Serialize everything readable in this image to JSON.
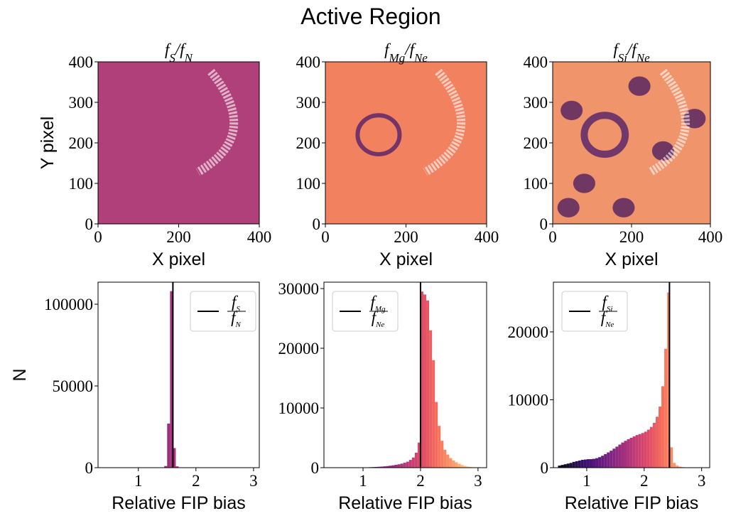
{
  "title": "Active Region",
  "chart_data": [
    {
      "type": "image",
      "title": [
        {
          "text": "f"
        },
        {
          "text": "S",
          "sub": true
        },
        {
          "text": "/"
        },
        {
          "text": "f"
        },
        {
          "text": "N",
          "sub": true
        }
      ],
      "xlabel": "X pixel",
      "ylabel": "Y pixel",
      "xlim": [
        0,
        400
      ],
      "ylim": [
        0,
        400
      ],
      "xticks": [
        0,
        200,
        400
      ],
      "yticks": [
        0,
        100,
        200,
        300,
        400
      ],
      "color": "#b0407a"
    },
    {
      "type": "image",
      "title": [
        {
          "text": "f"
        },
        {
          "text": "Mg",
          "sub": true
        },
        {
          "text": "/"
        },
        {
          "text": "f"
        },
        {
          "text": "Ne",
          "sub": true
        }
      ],
      "xlabel": "X pixel",
      "xlim": [
        0,
        400
      ],
      "ylim": [
        0,
        400
      ],
      "xticks": [
        0,
        200,
        400
      ],
      "yticks": [
        0,
        100,
        200,
        300,
        400
      ],
      "color": "#f2825f"
    },
    {
      "type": "image",
      "title": [
        {
          "text": "f"
        },
        {
          "text": "Si",
          "sub": true
        },
        {
          "text": "/"
        },
        {
          "text": "f"
        },
        {
          "text": "Ne",
          "sub": true
        }
      ],
      "xlabel": "X pixel",
      "xlim": [
        0,
        400
      ],
      "ylim": [
        0,
        400
      ],
      "xticks": [
        0,
        200,
        400
      ],
      "yticks": [
        0,
        100,
        200,
        300,
        400
      ],
      "color": "#f0946c"
    },
    {
      "type": "histogram",
      "xlabel": "Relative FIP bias",
      "ylabel": "N",
      "cmap": "magma",
      "bins": [
        0.5,
        0.55,
        0.6,
        0.65,
        0.7,
        0.75,
        0.8,
        0.85,
        0.9,
        0.95,
        1.0,
        1.05,
        1.1,
        1.15,
        1.2,
        1.25,
        1.3,
        1.35,
        1.4,
        1.45,
        1.5,
        1.55,
        1.6,
        1.65,
        1.7,
        1.75,
        1.8,
        1.85,
        1.9,
        1.95,
        2.0,
        2.05,
        2.1,
        2.15,
        2.2,
        2.25,
        2.3,
        2.35,
        2.4,
        2.45,
        2.5,
        2.55,
        2.6,
        2.65,
        2.7,
        2.75,
        2.8,
        2.85,
        2.9,
        2.95,
        3.0
      ],
      "counts": [
        0,
        0,
        0,
        0,
        0,
        0,
        0,
        0,
        0,
        0,
        0,
        0,
        0,
        0,
        0,
        0,
        0,
        0,
        0,
        1000,
        27000,
        108000,
        12000,
        800,
        0,
        0,
        0,
        0,
        0,
        0,
        0,
        0,
        0,
        0,
        0,
        0,
        0,
        0,
        0,
        0,
        0,
        0,
        0,
        0,
        0,
        0,
        0,
        0,
        0,
        0
      ],
      "xlim": [
        0.3,
        3.1
      ],
      "ylim": [
        0,
        113500
      ],
      "xticks": [
        1,
        2,
        3
      ],
      "yticks": [
        0,
        50000,
        100000
      ],
      "vline": 1.6,
      "vline_color": "#000000",
      "legend": {
        "loc": "upper right",
        "numerator": [
          {
            "text": "f"
          },
          {
            "text": "S",
            "sub": true
          }
        ],
        "denominator": [
          {
            "text": "f"
          },
          {
            "text": "N",
            "sub": true
          }
        ]
      }
    },
    {
      "type": "histogram",
      "xlabel": "Relative FIP bias",
      "cmap": "magma",
      "bins": [
        0.5,
        0.55,
        0.6,
        0.65,
        0.7,
        0.75,
        0.8,
        0.85,
        0.9,
        0.95,
        1.0,
        1.05,
        1.1,
        1.15,
        1.2,
        1.25,
        1.3,
        1.35,
        1.4,
        1.45,
        1.5,
        1.55,
        1.6,
        1.65,
        1.7,
        1.75,
        1.8,
        1.85,
        1.9,
        1.95,
        2.0,
        2.05,
        2.1,
        2.15,
        2.2,
        2.25,
        2.3,
        2.35,
        2.4,
        2.45,
        2.5,
        2.55,
        2.6,
        2.65,
        2.7,
        2.75,
        2.8,
        2.85,
        2.9,
        2.95,
        3.0
      ],
      "counts": [
        0,
        0,
        0,
        0,
        0,
        0,
        0,
        0,
        20,
        30,
        50,
        60,
        80,
        100,
        120,
        150,
        180,
        220,
        270,
        330,
        400,
        480,
        570,
        680,
        820,
        1000,
        1300,
        1700,
        2500,
        4200,
        29500,
        29000,
        28000,
        23000,
        18000,
        11000,
        7000,
        4500,
        3000,
        2200,
        1600,
        1200,
        900,
        650,
        450,
        300,
        200,
        130,
        80,
        40
      ],
      "xlim": [
        0.32,
        3.15
      ],
      "ylim": [
        0,
        31070
      ],
      "xticks": [
        1,
        2,
        3
      ],
      "yticks": [
        0,
        10000,
        20000,
        30000
      ],
      "vline": 2.0,
      "vline_color": "#000000",
      "legend": {
        "loc": "upper left",
        "numerator": [
          {
            "text": "f"
          },
          {
            "text": "Mg",
            "sub": true
          }
        ],
        "denominator": [
          {
            "text": "f"
          },
          {
            "text": "Ne",
            "sub": true
          }
        ]
      }
    },
    {
      "type": "histogram",
      "xlabel": "Relative FIP bias",
      "cmap": "magma",
      "bins": [
        0.5,
        0.55,
        0.6,
        0.65,
        0.7,
        0.75,
        0.8,
        0.85,
        0.9,
        0.95,
        1.0,
        1.05,
        1.1,
        1.15,
        1.2,
        1.25,
        1.3,
        1.35,
        1.4,
        1.45,
        1.5,
        1.55,
        1.6,
        1.65,
        1.7,
        1.75,
        1.8,
        1.85,
        1.9,
        1.95,
        2.0,
        2.05,
        2.1,
        2.15,
        2.2,
        2.25,
        2.3,
        2.35,
        2.4,
        2.45,
        2.5,
        2.55,
        2.6,
        2.65,
        2.7,
        2.75,
        2.8,
        2.85,
        2.9,
        2.95,
        3.0
      ],
      "counts": [
        300,
        400,
        500,
        600,
        700,
        850,
        950,
        1050,
        1150,
        1200,
        1250,
        1250,
        1300,
        1400,
        1550,
        1750,
        2000,
        2250,
        2500,
        2800,
        3100,
        3400,
        3700,
        3950,
        4200,
        4400,
        4600,
        4800,
        4950,
        5100,
        5300,
        5600,
        6000,
        6600,
        7500,
        9000,
        12000,
        17500,
        25800,
        3000,
        700,
        300,
        150,
        80,
        40,
        20,
        10,
        0,
        0,
        0
      ],
      "xlim": [
        0.42,
        3.14
      ],
      "ylim": [
        0,
        27320
      ],
      "xticks": [
        1,
        2,
        3
      ],
      "yticks": [
        0,
        10000,
        20000
      ],
      "vline": 2.44,
      "vline_color": "#000000",
      "legend": {
        "loc": "upper left",
        "numerator": [
          {
            "text": "f"
          },
          {
            "text": "Si",
            "sub": true
          }
        ],
        "denominator": [
          {
            "text": "f"
          },
          {
            "text": "Ne",
            "sub": true
          }
        ]
      }
    }
  ]
}
